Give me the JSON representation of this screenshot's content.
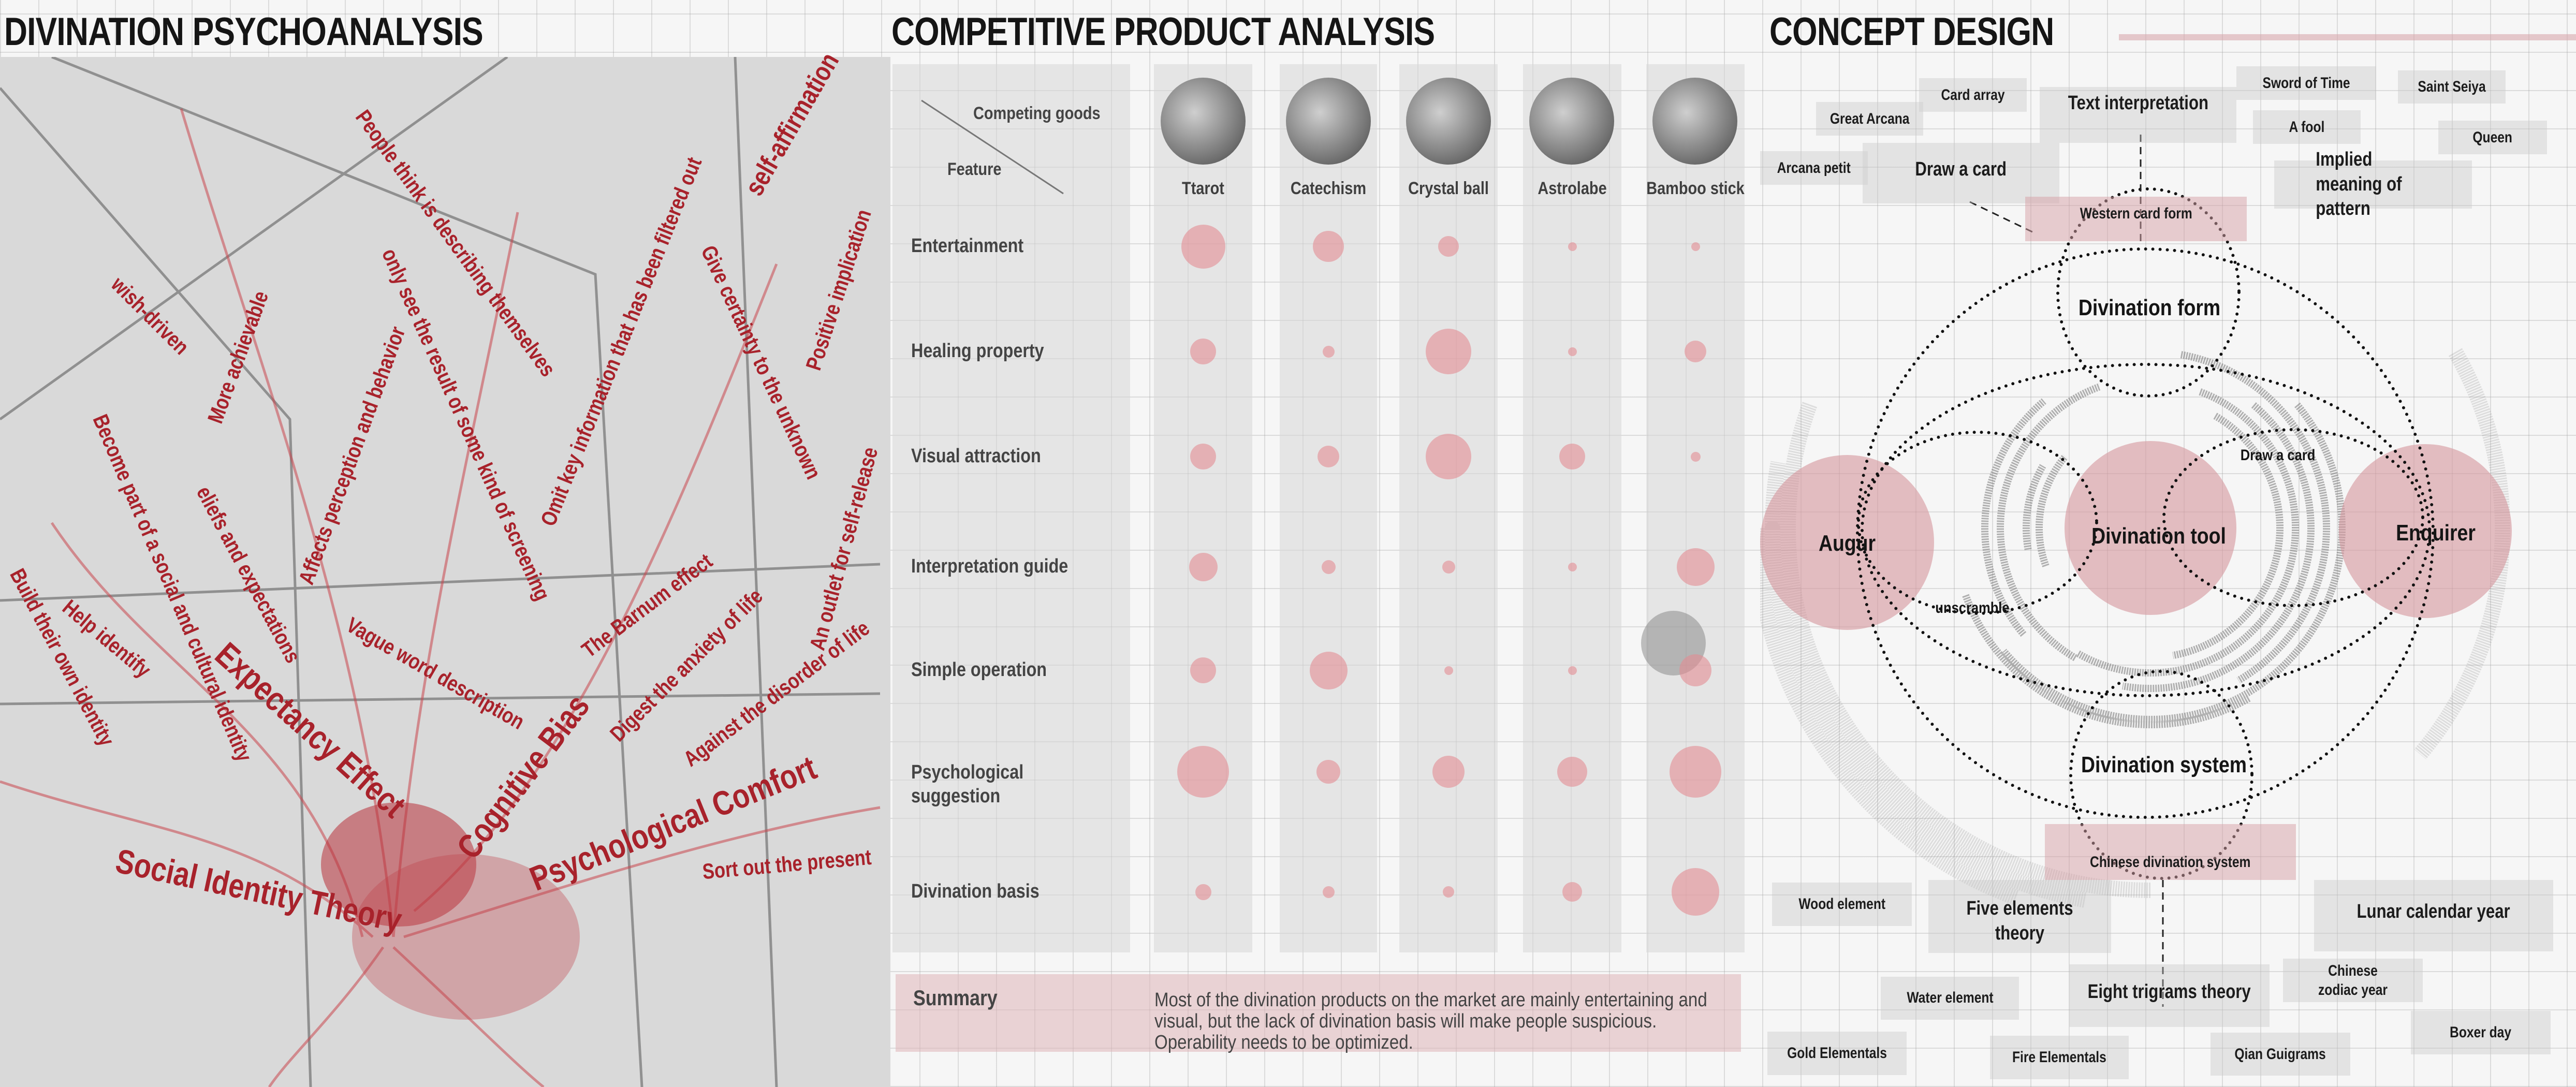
{
  "titles": {
    "left": "DIVINATION PSYCHOANALYSIS",
    "center": "COMPETITIVE PRODUCT ANALYSIS",
    "right": "CONCEPT DESIGN"
  },
  "psychoanalysis": {
    "main": [
      "Social Identity Theory",
      "Expectancy Effect",
      "Cognitive Bias",
      "Psychological Comfort"
    ],
    "notes": [
      "People think is describing themselves",
      "Omit key information that has been filtered out",
      "self-affirmation",
      "Give certainty to the unknown",
      "Positive implication",
      "An outlet for self-release",
      "Against the disorder of life",
      "Digest the anxiety of life",
      "The Barnum effect",
      "only see the result of some kind of screening",
      "Vague word description",
      "Affects perception and behavior",
      "wish-driven",
      "More achievable",
      "eliefs and expectations",
      "Become part of a social and cultural identity",
      "Help identify",
      "Build their own identity",
      "Sort out the present"
    ]
  },
  "matrix": {
    "header_top": "Competing goods",
    "header_left": "Feature",
    "products": [
      "Ttarot",
      "Catechism",
      "Crystal ball",
      "Astrolabe",
      "Bamboo stick"
    ],
    "features": [
      "Entertainment",
      "Healing property",
      "Visual attraction",
      "Interpretation guide",
      "Simple operation",
      "Psychological suggestion",
      "Divination basis"
    ],
    "scores_scale": [
      0,
      10
    ],
    "scores": [
      [
        8.5,
        6,
        4,
        1.7,
        1.7
      ],
      [
        5,
        2.3,
        8.8,
        1.7,
        4.2
      ],
      [
        5,
        4.2,
        8.8,
        5,
        1.9
      ],
      [
        5.5,
        2.7,
        2.5,
        1.7,
        7.3
      ],
      [
        5,
        7.3,
        1.7,
        1.7,
        6.2
      ],
      [
        10,
        4.6,
        6.2,
        5.8,
        10
      ],
      [
        3.1,
        2.3,
        2.2,
        3.8,
        9.2
      ]
    ],
    "bubble_color": "#e28c92",
    "summary_label": "Summary",
    "summary_text": "Most of the divination products on the market are mainly entertaining and visual, but  the lack of  divination   basis will make people suspicious. Operability needs to be optimized."
  },
  "concept": {
    "top_boxes": [
      "Great Arcana",
      "Card array",
      "Text interpretation",
      "Sword of Time",
      "Saint Seiya",
      "A fool",
      "Queen",
      "Arcana petit",
      "Draw a card",
      "Implied meaning of pattern",
      "Western card form"
    ],
    "bottom_boxes": [
      "Wood element",
      "Five elements theory",
      "Lunar calendar year",
      "Chinese zodiac year",
      "Water element",
      "Eight trigrams theory",
      "Boxer day",
      "Gold Elementals",
      "Fire Elementals",
      "Qian Guigrams",
      "Chinese divination system"
    ],
    "nodes": {
      "augur": "Augur",
      "tool": "Divination tool",
      "enquirer": "Enquirer",
      "form": "Divination form",
      "system": "Divination system",
      "draw": "Draw a card",
      "unscramble": "unscramble"
    },
    "accent": "#d6a0a5"
  }
}
